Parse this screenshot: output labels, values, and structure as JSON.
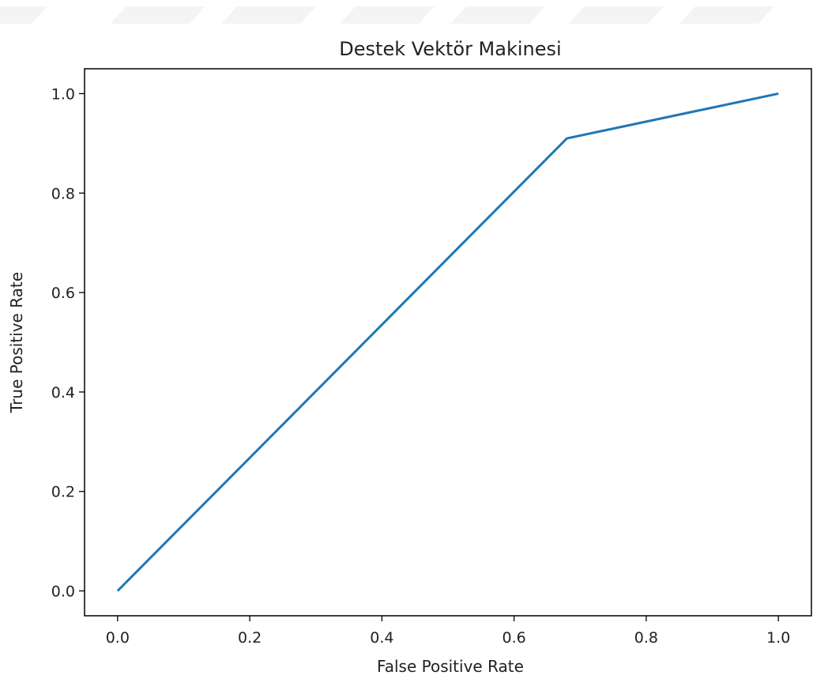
{
  "chart_data": {
    "type": "line",
    "title": "Destek Vektör Makinesi",
    "xlabel": "False Positive Rate",
    "ylabel": "True Positive Rate",
    "xlim": [
      -0.05,
      1.05
    ],
    "ylim": [
      -0.05,
      1.05
    ],
    "xticks": [
      "0.0",
      "0.2",
      "0.4",
      "0.6",
      "0.8",
      "1.0"
    ],
    "yticks": [
      "0.0",
      "0.2",
      "0.4",
      "0.6",
      "0.8",
      "1.0"
    ],
    "grid": false,
    "series": [
      {
        "color": "#1f77b4",
        "x": [
          0.0,
          0.68,
          1.0
        ],
        "y": [
          0.0,
          0.91,
          1.0
        ]
      }
    ]
  }
}
